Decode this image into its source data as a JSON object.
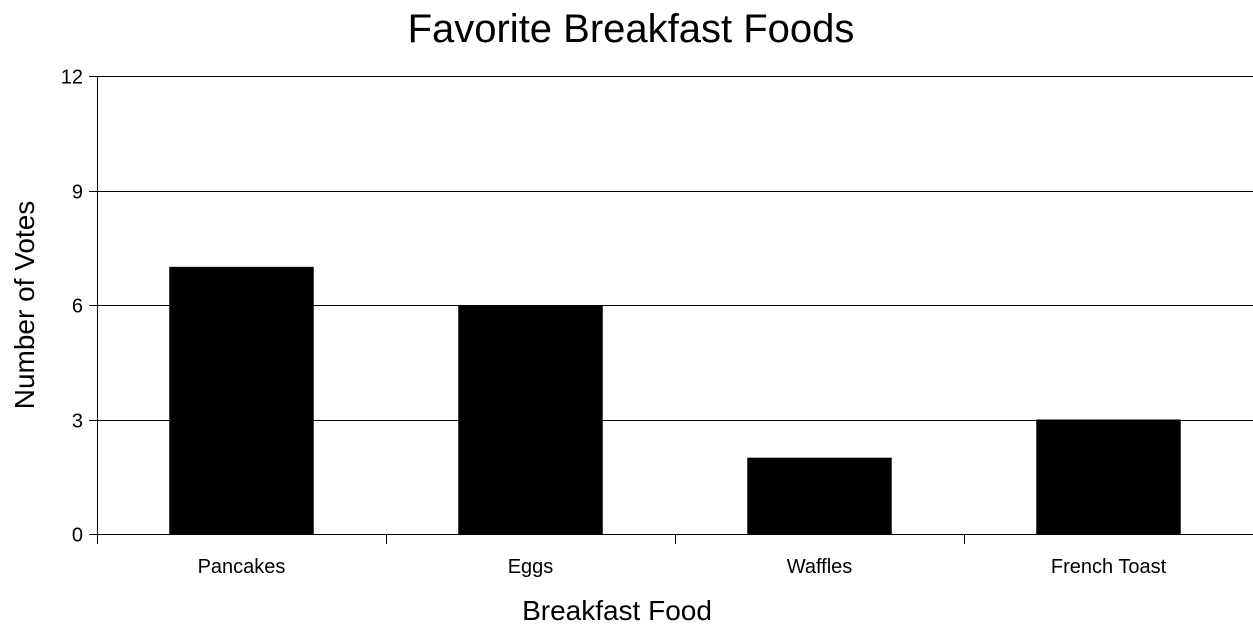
{
  "chart_data": {
    "type": "bar",
    "title": "Favorite Breakfast Foods",
    "xlabel": "Breakfast Food",
    "ylabel": "Number of Votes",
    "categories": [
      "Pancakes",
      "Eggs",
      "Waffles",
      "French Toast"
    ],
    "values": [
      7,
      6,
      2,
      3
    ],
    "ylim": [
      0,
      12
    ],
    "yticks": [
      0,
      3,
      6,
      9,
      12
    ],
    "grid": true,
    "legend": "none",
    "bar_color": "#000000"
  }
}
